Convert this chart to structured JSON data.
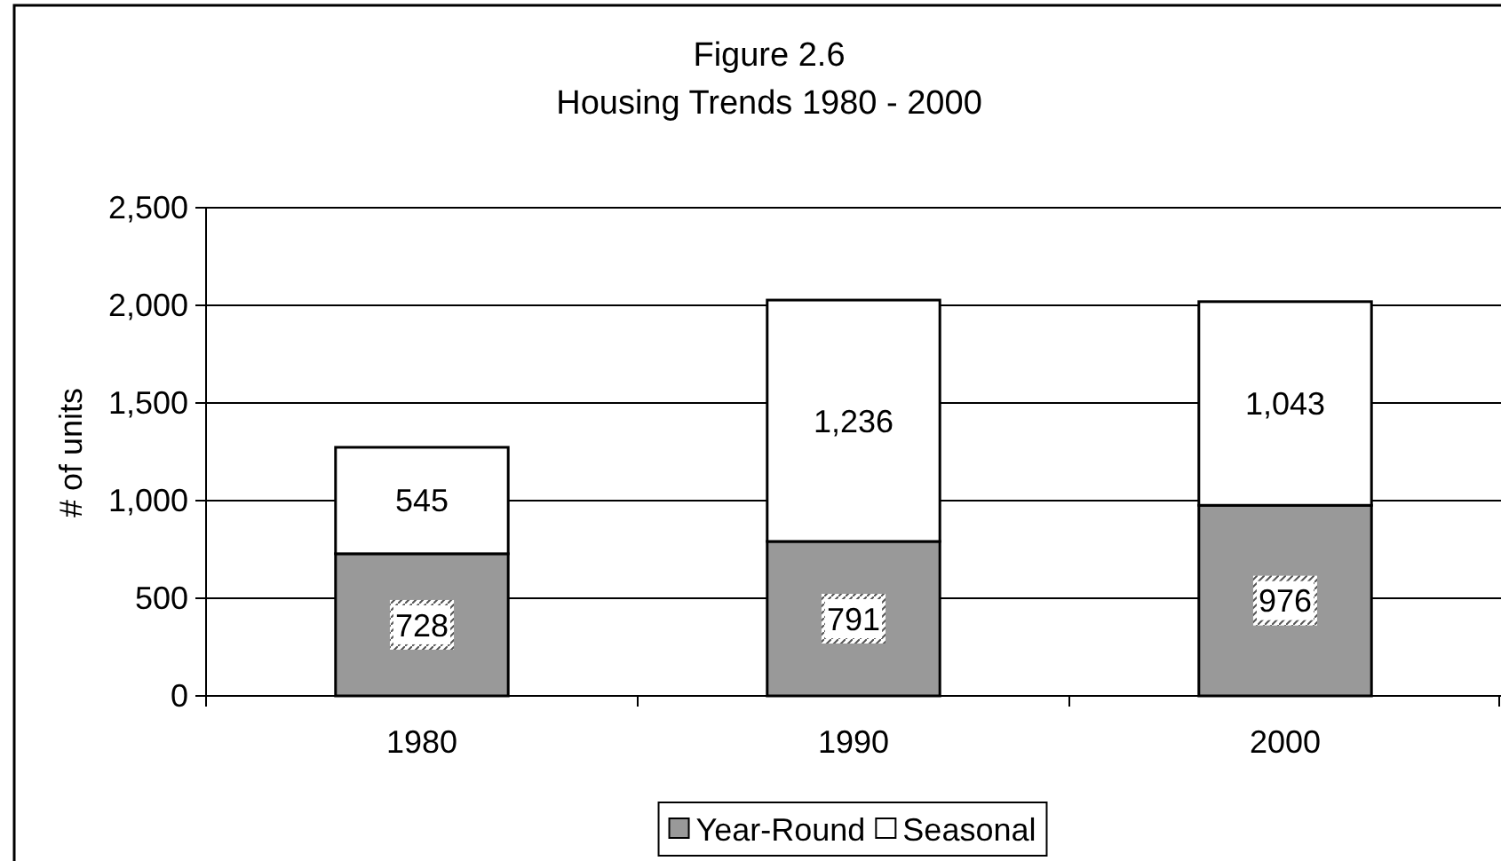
{
  "chart_data": {
    "type": "bar",
    "title": "Figure 2.6",
    "subtitle": "Housing Trends 1980 - 2000",
    "ylabel": "# of units",
    "categories": [
      "1980",
      "1990",
      "2000"
    ],
    "series": [
      {
        "name": "Year-Round",
        "color": "#999999",
        "values": [
          728,
          791,
          976
        ],
        "value_labels": [
          "728",
          "791",
          "976"
        ]
      },
      {
        "name": "Seasonal",
        "color": "#ffffff",
        "values": [
          545,
          1236,
          1043
        ],
        "value_labels": [
          "545",
          "1,236",
          "1,043"
        ]
      }
    ],
    "stacked": true,
    "legend": "bottom",
    "grid": true,
    "ylim": [
      0,
      2500
    ],
    "yticks": [
      0,
      500,
      {
        "value": 1000,
        "label": "1,000"
      },
      {
        "value": 1500,
        "label": "1,500"
      },
      {
        "value": 2000,
        "label": "2,000"
      },
      {
        "value": 2500,
        "label": "2,500"
      }
    ]
  }
}
